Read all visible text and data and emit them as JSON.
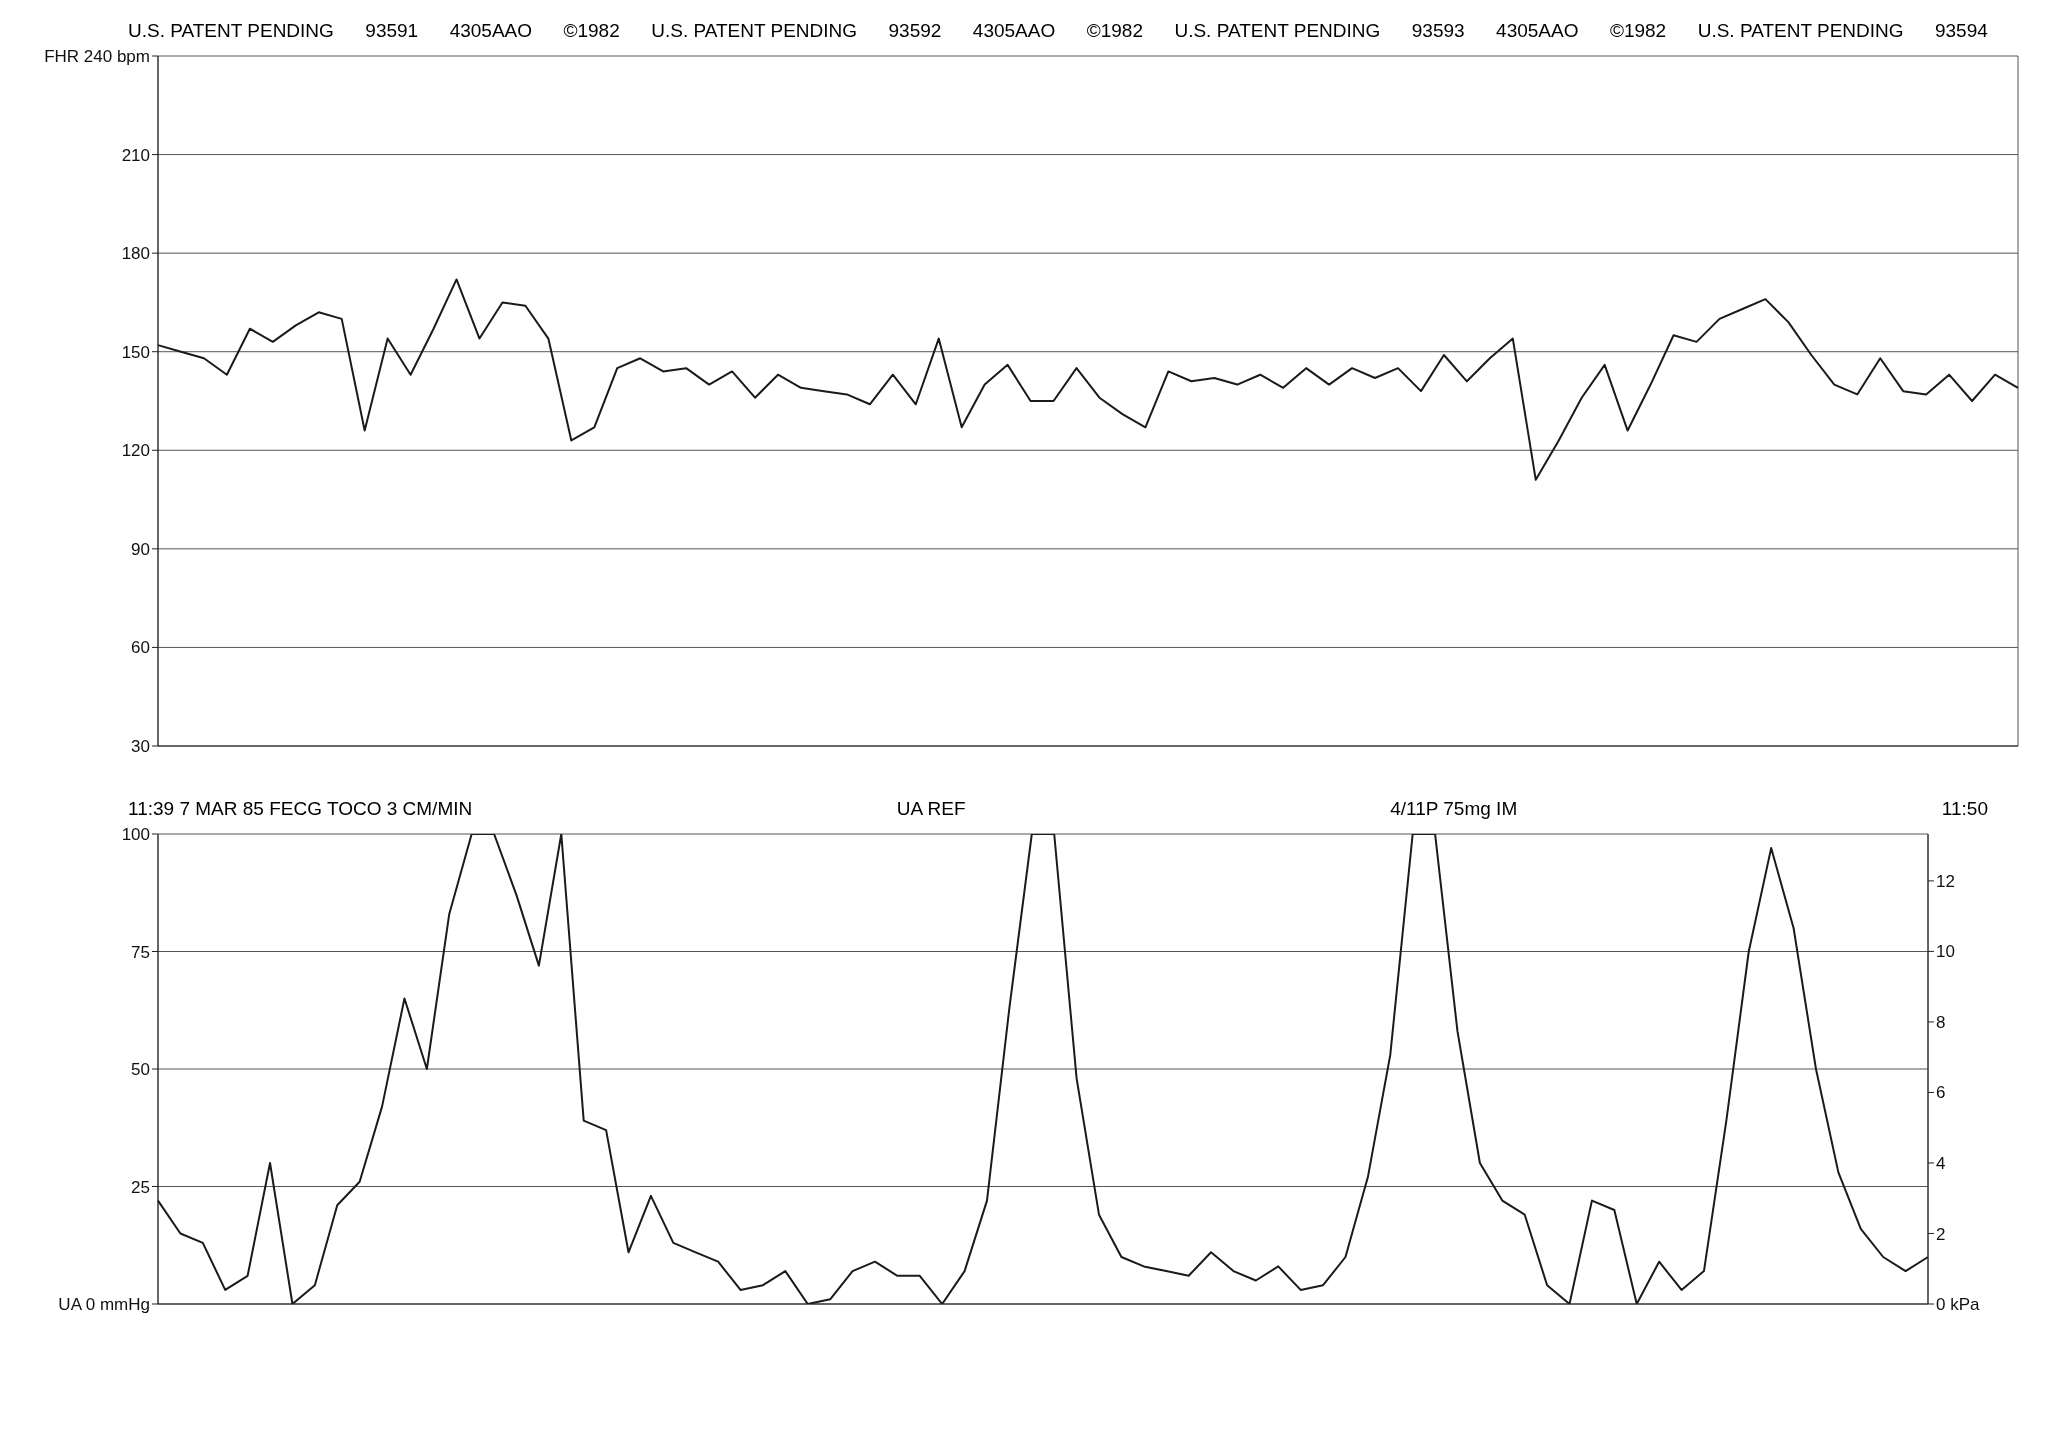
{
  "chart_data": [
    {
      "type": "line",
      "annotations": [
        "U.S. PATENT PENDING",
        "93591",
        "4305AAO",
        "©1982",
        "U.S. PATENT PENDING",
        "93592",
        "4305AAO",
        "©1982",
        "U.S. PATENT PENDING",
        "93593",
        "4305AAO",
        "©1982",
        "U.S. PATENT PENDING",
        "93594"
      ],
      "categories": [
        null,
        null,
        null,
        null,
        null,
        null,
        null,
        null,
        null,
        null,
        null,
        null,
        null,
        null,
        null,
        null,
        null,
        null,
        null,
        null,
        null,
        null,
        null,
        null,
        null,
        null,
        null,
        null,
        null,
        null,
        null,
        null,
        null,
        null,
        null,
        null,
        null,
        null,
        null,
        null,
        null,
        null,
        null,
        null,
        null,
        null,
        null,
        null,
        null,
        null,
        null,
        null,
        null,
        null,
        null,
        null,
        null,
        null,
        null,
        null,
        null,
        null,
        null,
        null,
        null,
        null,
        null,
        null,
        null,
        null,
        null,
        null,
        null,
        null,
        null,
        null,
        null,
        null,
        null,
        null,
        null,
        null
      ],
      "series": [
        {
          "color": "#1a1a1a",
          "values": [
            152,
            150,
            148,
            143,
            157,
            153,
            158,
            162,
            160,
            126,
            154,
            143,
            157,
            172,
            154,
            165,
            164,
            154,
            123,
            127,
            145,
            148,
            144,
            145,
            140,
            144,
            136,
            143,
            139,
            138,
            137,
            134,
            143,
            134,
            154,
            127,
            140,
            146,
            135,
            135,
            145,
            136,
            131,
            127,
            144,
            141,
            142,
            140,
            143,
            139,
            145,
            140,
            145,
            142,
            145,
            138,
            149,
            141,
            148,
            154,
            111,
            123,
            136,
            146,
            126,
            140,
            155,
            153,
            160,
            163,
            166,
            159,
            149,
            140,
            137,
            148,
            138,
            137,
            143,
            135,
            143,
            139
          ]
        }
      ],
      "ylim": [
        30,
        240
      ],
      "yticks": [
        30,
        60,
        90,
        120,
        150,
        180,
        210,
        {
          "value": 240,
          "label": "FHR 240 bpm"
        }
      ],
      "grid": true
    },
    {
      "type": "line",
      "annotations": [
        "11:39 7 MAR 85 FECG TOCO 3 CM/MIN",
        "UA REF",
        "4/11P 75mg IM",
        "11:50"
      ],
      "categories": [
        null,
        null,
        null,
        null,
        null,
        null,
        null,
        null,
        null,
        null,
        null,
        null,
        null,
        null,
        null,
        null,
        null,
        null,
        null,
        null,
        null,
        null,
        null,
        null,
        null,
        null,
        null,
        null,
        null,
        null,
        null,
        null,
        null,
        null,
        null,
        null,
        null,
        null,
        null,
        null,
        null,
        null,
        null,
        null,
        null,
        null,
        null,
        null,
        null,
        null,
        null,
        null,
        null,
        null,
        null,
        null,
        null,
        null,
        null,
        null,
        null,
        null,
        null,
        null,
        null,
        null,
        null,
        null,
        null,
        null,
        null,
        null,
        null,
        null,
        null,
        null,
        null,
        null,
        null,
        null
      ],
      "series": [
        {
          "color": "#1a1a1a",
          "values": [
            22,
            15,
            13,
            3,
            6,
            30,
            0,
            4,
            21,
            26,
            42,
            65,
            50,
            83,
            100,
            100,
            87,
            72,
            100,
            39,
            37,
            11,
            23,
            13,
            11,
            9,
            3,
            4,
            7,
            0,
            1,
            7,
            9,
            6,
            6,
            0,
            7,
            22,
            63,
            100,
            100,
            48,
            19,
            10,
            8,
            7,
            6,
            11,
            7,
            5,
            8,
            3,
            4,
            10,
            27,
            53,
            100,
            100,
            58,
            30,
            22,
            19,
            4,
            0,
            22,
            20,
            0,
            9,
            3,
            7,
            39,
            75,
            97,
            80,
            50,
            28,
            16,
            10,
            7,
            10
          ]
        }
      ],
      "ylim": [
        0,
        100
      ],
      "yticks": [
        {
          "value": 0,
          "label": "UA 0 mmHg"
        },
        25,
        50,
        75,
        100
      ],
      "y2lim": [
        0,
        13.33
      ],
      "y2ticks": [
        {
          "value": 0,
          "label": "0 kPa"
        },
        2,
        4,
        6,
        8,
        10,
        12
      ],
      "grid": true
    }
  ]
}
